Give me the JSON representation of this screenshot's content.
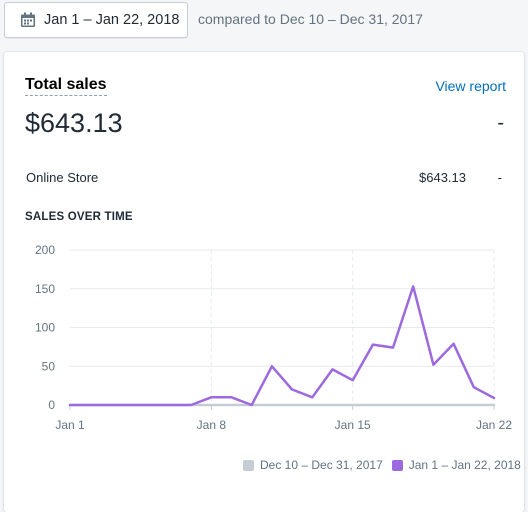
{
  "header": {
    "date_range": "Jan 1 – Jan 22, 2018",
    "comparison": "compared to Dec 10 – Dec 31, 2017",
    "calendar_icon": "calendar-icon"
  },
  "card": {
    "title": "Total sales",
    "view_report": "View report",
    "total_value": "$643.13",
    "total_change": "-",
    "rows": [
      {
        "label": "Online Store",
        "value": "$643.13",
        "change": "-"
      }
    ],
    "section_title": "SALES OVER TIME"
  },
  "colors": {
    "current_series": "#9c6ade",
    "previous_series": "#c4cdd5",
    "link": "#006fbb"
  },
  "chart_data": {
    "type": "line",
    "title": "SALES OVER TIME",
    "xlabel": "",
    "ylabel": "",
    "ylim": [
      0,
      200
    ],
    "yticks": [
      "0",
      "50",
      "100",
      "150",
      "200"
    ],
    "xticks": [
      "Jan 1",
      "Jan 8",
      "Jan 15",
      "Jan 22"
    ],
    "grid": true,
    "legend_position": "bottom-right",
    "x": [
      "Jan 1",
      "Jan 2",
      "Jan 3",
      "Jan 4",
      "Jan 5",
      "Jan 6",
      "Jan 7",
      "Jan 8",
      "Jan 9",
      "Jan 10",
      "Jan 11",
      "Jan 12",
      "Jan 13",
      "Jan 14",
      "Jan 15",
      "Jan 16",
      "Jan 17",
      "Jan 18",
      "Jan 19",
      "Jan 20",
      "Jan 21",
      "Jan 22"
    ],
    "series": [
      {
        "name": "Dec 10 – Dec 31, 2017",
        "values": [
          0,
          0,
          0,
          0,
          0,
          0,
          0,
          0,
          0,
          0,
          0,
          0,
          0,
          0,
          0,
          0,
          0,
          0,
          0,
          0,
          0,
          0
        ]
      },
      {
        "name": "Jan 1 – Jan 22, 2018",
        "values": [
          0,
          0,
          0,
          0,
          0,
          0,
          0,
          10,
          10,
          0,
          50,
          20,
          10,
          46,
          32,
          78,
          74,
          153,
          52,
          79,
          23,
          9
        ]
      }
    ]
  }
}
